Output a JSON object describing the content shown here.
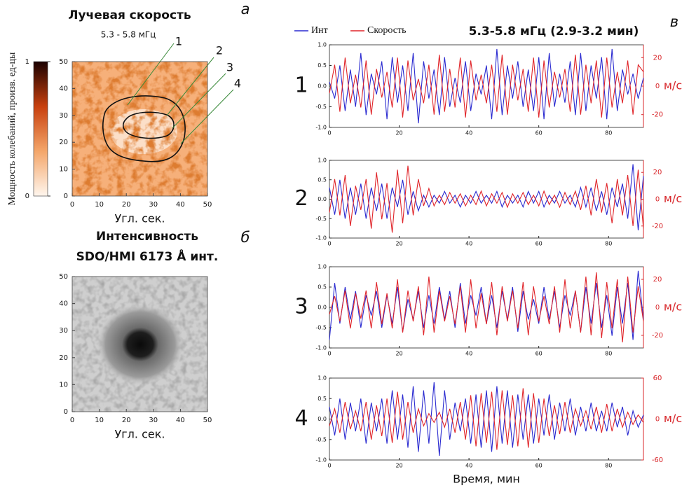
{
  "chart_data": [
    {
      "type": "heatmap",
      "panel": "а",
      "title": "Лучевая скорость",
      "subtitle": "5.3 - 5.8 мГц",
      "xlabel": "Угл. сек.",
      "xlim": [
        0,
        50
      ],
      "xticks": [
        0,
        10,
        20,
        30,
        40,
        50
      ],
      "ylim": [
        0,
        50
      ],
      "yticks": [
        0,
        10,
        20,
        30,
        40,
        50
      ],
      "colorbar": {
        "label": "Мощность колебаний, произв. ед-цы",
        "lim": [
          0,
          1
        ],
        "ticks": [
          0,
          1
        ],
        "colors": [
          "#fff6ee",
          "#f4a66a",
          "#c8400e",
          "#1a0000"
        ]
      },
      "contour_labels": [
        "1",
        "2",
        "3",
        "4"
      ]
    },
    {
      "type": "heatmap",
      "panel": "б",
      "title": "Интенсивность",
      "subtitle": "SDO/HMI 6173 Å инт.",
      "xlabel": "Угл. сек.",
      "xlim": [
        0,
        50
      ],
      "xticks": [
        0,
        10,
        20,
        30,
        40,
        50
      ],
      "ylim": [
        0,
        50
      ],
      "yticks": [
        0,
        10,
        20,
        30,
        40,
        50
      ]
    },
    {
      "type": "line",
      "panel": "в",
      "title": "5.3-5.8 мГц (2.9-3.2 мин)",
      "label": "1",
      "y2label": "м/с",
      "x": [
        0,
        1.5,
        3,
        4.5,
        6,
        7.5,
        9,
        10.5,
        12,
        13.5,
        15,
        16.5,
        18,
        19.5,
        21,
        22.5,
        24,
        25.5,
        27,
        28.5,
        30,
        31.5,
        33,
        34.5,
        36,
        37.5,
        39,
        40.5,
        42,
        43.5,
        45,
        46.5,
        48,
        49.5,
        51,
        52.5,
        54,
        55.5,
        57,
        58.5,
        60,
        61.5,
        63,
        64.5,
        66,
        67.5,
        69,
        70.5,
        72,
        73.5,
        75,
        76.5,
        78,
        79.5,
        81,
        82.5,
        84,
        85.5,
        87,
        88.5,
        90
      ],
      "xlim": [
        0,
        90
      ],
      "xticks": [
        0,
        20,
        40,
        60,
        80
      ],
      "ylim": [
        -1,
        1
      ],
      "yticks": [
        {
          "value": -1,
          "label": "-1.0"
        },
        {
          "value": -0.5,
          "label": "-0.5"
        },
        {
          "value": 0,
          "label": "0.0"
        },
        {
          "value": 0.5,
          "label": "0.5"
        },
        {
          "value": 1,
          "label": "1.0"
        }
      ],
      "y2lim": [
        -29,
        29
      ],
      "y2ticks": [
        -20,
        0,
        20
      ],
      "series": [
        {
          "name": "Инт",
          "color": "#2a2ad0",
          "values": [
            0.1,
            -0.3,
            0.5,
            -0.6,
            0.4,
            -0.5,
            0.8,
            -0.7,
            0.3,
            -0.2,
            0.6,
            -0.8,
            0.7,
            -0.4,
            0.5,
            -0.6,
            0.8,
            -0.9,
            0.6,
            -0.3,
            0.4,
            -0.7,
            0.7,
            -0.5,
            0.2,
            -0.4,
            0.6,
            -0.6,
            0.3,
            -0.2,
            0.5,
            -0.8,
            0.9,
            -0.7,
            0.5,
            -0.3,
            0.6,
            -0.5,
            0.4,
            -0.6,
            0.7,
            -0.8,
            0.8,
            -0.5,
            0.3,
            -0.4,
            0.6,
            -0.7,
            0.8,
            -0.6,
            0.5,
            -0.3,
            0.7,
            -0.8,
            0.9,
            -0.6,
            0.4,
            -0.2,
            0.3,
            -0.3,
            0.2
          ]
        },
        {
          "name": "Скорость",
          "color": "#e0252a",
          "axis": "y2",
          "values": [
            -5,
            15,
            -18,
            20,
            -12,
            8,
            -15,
            18,
            -20,
            12,
            -8,
            10,
            -15,
            20,
            -22,
            18,
            -10,
            5,
            -12,
            15,
            -20,
            22,
            -18,
            12,
            -15,
            20,
            -22,
            18,
            -10,
            8,
            -12,
            15,
            -18,
            22,
            -20,
            15,
            -10,
            12,
            -18,
            20,
            -22,
            18,
            -15,
            10,
            -8,
            12,
            -18,
            22,
            -20,
            15,
            -12,
            18,
            -22,
            20,
            -15,
            10,
            -12,
            18,
            -20,
            15,
            10
          ]
        }
      ]
    },
    {
      "type": "line",
      "label": "2",
      "y2label": "м/с",
      "x": [
        0,
        1.5,
        3,
        4.5,
        6,
        7.5,
        9,
        10.5,
        12,
        13.5,
        15,
        16.5,
        18,
        19.5,
        21,
        22.5,
        24,
        25.5,
        27,
        28.5,
        30,
        31.5,
        33,
        34.5,
        36,
        37.5,
        39,
        40.5,
        42,
        43.5,
        45,
        46.5,
        48,
        49.5,
        51,
        52.5,
        54,
        55.5,
        57,
        58.5,
        60,
        61.5,
        63,
        64.5,
        66,
        67.5,
        69,
        70.5,
        72,
        73.5,
        75,
        76.5,
        78,
        79.5,
        81,
        82.5,
        84,
        85.5,
        87,
        88.5,
        90
      ],
      "xlim": [
        0,
        90
      ],
      "xticks": [
        0,
        20,
        40,
        60,
        80
      ],
      "ylim": [
        -1,
        1
      ],
      "yticks": [
        {
          "value": -1,
          "label": "-1.0"
        },
        {
          "value": -0.5,
          "label": "-0.5"
        },
        {
          "value": 0,
          "label": "0.0"
        },
        {
          "value": 0.5,
          "label": "0.5"
        },
        {
          "value": 1,
          "label": "1.0"
        }
      ],
      "y2lim": [
        -29,
        29
      ],
      "y2ticks": [
        -20,
        0,
        20
      ],
      "series": [
        {
          "color": "#2a2ad0",
          "values": [
            0.3,
            -0.4,
            0.5,
            -0.5,
            0.3,
            -0.4,
            0.4,
            -0.5,
            0.3,
            -0.3,
            0.4,
            -0.5,
            0.3,
            -0.2,
            0.5,
            -0.4,
            0.2,
            -0.3,
            0.1,
            -0.2,
            0.1,
            -0.1,
            0.2,
            -0.1,
            0.1,
            -0.2,
            0.1,
            -0.1,
            0.2,
            -0.1,
            0.1,
            -0.1,
            0.2,
            -0.2,
            0.1,
            -0.1,
            0.1,
            -0.2,
            0.2,
            -0.1,
            0.2,
            -0.2,
            0.1,
            -0.1,
            0.2,
            -0.1,
            0.1,
            -0.2,
            0.3,
            -0.2,
            0.3,
            -0.3,
            0.2,
            -0.4,
            0.3,
            -0.2,
            0.4,
            -0.5,
            0.9,
            -0.8,
            0.6
          ]
        },
        {
          "color": "#e0252a",
          "axis": "y2",
          "values": [
            -10,
            15,
            -12,
            18,
            -20,
            10,
            -8,
            15,
            -22,
            20,
            -15,
            12,
            -25,
            22,
            -18,
            25,
            -12,
            15,
            -5,
            8,
            -5,
            3,
            -4,
            5,
            -3,
            4,
            -5,
            3,
            -4,
            6,
            -5,
            4,
            -3,
            5,
            -6,
            4,
            -3,
            5,
            -4,
            3,
            -5,
            6,
            -4,
            3,
            -6,
            5,
            -4,
            6,
            -8,
            10,
            -12,
            15,
            -10,
            12,
            -18,
            15,
            -12,
            18,
            -20,
            22,
            -22
          ]
        }
      ]
    },
    {
      "type": "line",
      "label": "3",
      "y2label": "м/с",
      "x": [
        0,
        1.5,
        3,
        4.5,
        6,
        7.5,
        9,
        10.5,
        12,
        13.5,
        15,
        16.5,
        18,
        19.5,
        21,
        22.5,
        24,
        25.5,
        27,
        28.5,
        30,
        31.5,
        33,
        34.5,
        36,
        37.5,
        39,
        40.5,
        42,
        43.5,
        45,
        46.5,
        48,
        49.5,
        51,
        52.5,
        54,
        55.5,
        57,
        58.5,
        60,
        61.5,
        63,
        64.5,
        66,
        67.5,
        69,
        70.5,
        72,
        73.5,
        75,
        76.5,
        78,
        79.5,
        81,
        82.5,
        84,
        85.5,
        87,
        88.5,
        90
      ],
      "xlim": [
        0,
        90
      ],
      "xticks": [
        0,
        20,
        40,
        60,
        80
      ],
      "ylim": [
        -1,
        1
      ],
      "yticks": [
        {
          "value": -1,
          "label": "-1.0"
        },
        {
          "value": -0.5,
          "label": "-0.5"
        },
        {
          "value": 0,
          "label": "0.0"
        },
        {
          "value": 0.5,
          "label": "0.5"
        },
        {
          "value": 1,
          "label": "1.0"
        }
      ],
      "y2lim": [
        -29,
        29
      ],
      "y2ticks": [
        -20,
        0,
        20
      ],
      "series": [
        {
          "color": "#2a2ad0",
          "values": [
            -0.8,
            0.6,
            -0.4,
            0.5,
            -0.3,
            0.4,
            -0.5,
            0.3,
            -0.2,
            0.4,
            -0.5,
            0.3,
            -0.4,
            0.5,
            -0.6,
            0.2,
            -0.3,
            0.4,
            -0.5,
            0.3,
            -0.4,
            0.5,
            -0.3,
            0.4,
            -0.5,
            0.6,
            -0.4,
            0.3,
            -0.2,
            0.5,
            -0.4,
            0.3,
            -0.5,
            0.4,
            -0.3,
            0.5,
            -0.6,
            0.4,
            -0.3,
            0.2,
            -0.4,
            0.5,
            -0.3,
            0.4,
            -0.5,
            0.3,
            -0.2,
            0.4,
            -0.6,
            0.5,
            -0.4,
            0.6,
            -0.5,
            0.3,
            -0.7,
            0.5,
            -0.4,
            0.6,
            -0.8,
            0.9,
            -0.3
          ]
        },
        {
          "color": "#e0252a",
          "axis": "y2",
          "values": [
            -5,
            8,
            -10,
            12,
            -15,
            10,
            -8,
            12,
            -15,
            18,
            -12,
            10,
            -15,
            20,
            -18,
            12,
            -10,
            15,
            -20,
            22,
            -18,
            12,
            -10,
            8,
            -12,
            15,
            -18,
            20,
            -15,
            10,
            -12,
            18,
            -20,
            15,
            -10,
            12,
            -15,
            18,
            -20,
            15,
            -10,
            8,
            -12,
            15,
            -18,
            20,
            -15,
            12,
            -18,
            22,
            -20,
            25,
            -22,
            18,
            -15,
            20,
            -25,
            22,
            -18,
            15,
            -10
          ]
        }
      ]
    },
    {
      "type": "line",
      "label": "4",
      "y2label": "м/с",
      "xlabel": "Время, мин",
      "x": [
        0,
        1.5,
        3,
        4.5,
        6,
        7.5,
        9,
        10.5,
        12,
        13.5,
        15,
        16.5,
        18,
        19.5,
        21,
        22.5,
        24,
        25.5,
        27,
        28.5,
        30,
        31.5,
        33,
        34.5,
        36,
        37.5,
        39,
        40.5,
        42,
        43.5,
        45,
        46.5,
        48,
        49.5,
        51,
        52.5,
        54,
        55.5,
        57,
        58.5,
        60,
        61.5,
        63,
        64.5,
        66,
        67.5,
        69,
        70.5,
        72,
        73.5,
        75,
        76.5,
        78,
        79.5,
        81,
        82.5,
        84,
        85.5,
        87,
        88.5,
        90
      ],
      "xlim": [
        0,
        90
      ],
      "xticks": [
        0,
        20,
        40,
        60,
        80
      ],
      "ylim": [
        -1,
        1
      ],
      "yticks": [
        {
          "value": -1,
          "label": "-1.0"
        },
        {
          "value": -0.5,
          "label": "-0.5"
        },
        {
          "value": 0,
          "label": "0.0"
        },
        {
          "value": 0.5,
          "label": "0.5"
        },
        {
          "value": 1,
          "label": "1.0"
        }
      ],
      "y2lim": [
        -60,
        60
      ],
      "y2ticks": [
        -60,
        0,
        60
      ],
      "series": [
        {
          "color": "#2a2ad0",
          "values": [
            0.3,
            -0.4,
            0.5,
            -0.5,
            0.4,
            -0.3,
            0.5,
            -0.6,
            0.4,
            -0.3,
            0.5,
            -0.6,
            0.7,
            -0.5,
            0.6,
            -0.7,
            0.8,
            -0.8,
            0.7,
            -0.6,
            0.9,
            -0.9,
            0.7,
            -0.5,
            0.4,
            -0.3,
            0.5,
            -0.6,
            0.6,
            -0.7,
            0.7,
            -0.8,
            0.8,
            -0.6,
            0.7,
            -0.7,
            0.6,
            -0.5,
            0.6,
            -0.6,
            0.5,
            -0.4,
            0.6,
            -0.5,
            0.4,
            -0.3,
            0.5,
            -0.4,
            0.3,
            -0.3,
            0.4,
            -0.3,
            0.2,
            -0.3,
            0.4,
            -0.2,
            0.3,
            -0.4,
            0.2,
            -0.2,
            0.1
          ]
        },
        {
          "color": "#e0252a",
          "axis": "y2",
          "values": [
            -10,
            15,
            -20,
            25,
            -15,
            12,
            -18,
            25,
            -30,
            20,
            -25,
            30,
            -35,
            40,
            -30,
            25,
            -20,
            15,
            -10,
            8,
            -5,
            10,
            -12,
            15,
            -20,
            25,
            -30,
            35,
            -40,
            38,
            -35,
            40,
            -45,
            42,
            -38,
            35,
            -40,
            45,
            -42,
            38,
            -35,
            30,
            -25,
            20,
            -22,
            25,
            -20,
            15,
            -10,
            12,
            -15,
            18,
            -20,
            22,
            -18,
            15,
            -12,
            10,
            -8,
            6,
            -5
          ]
        }
      ]
    }
  ]
}
